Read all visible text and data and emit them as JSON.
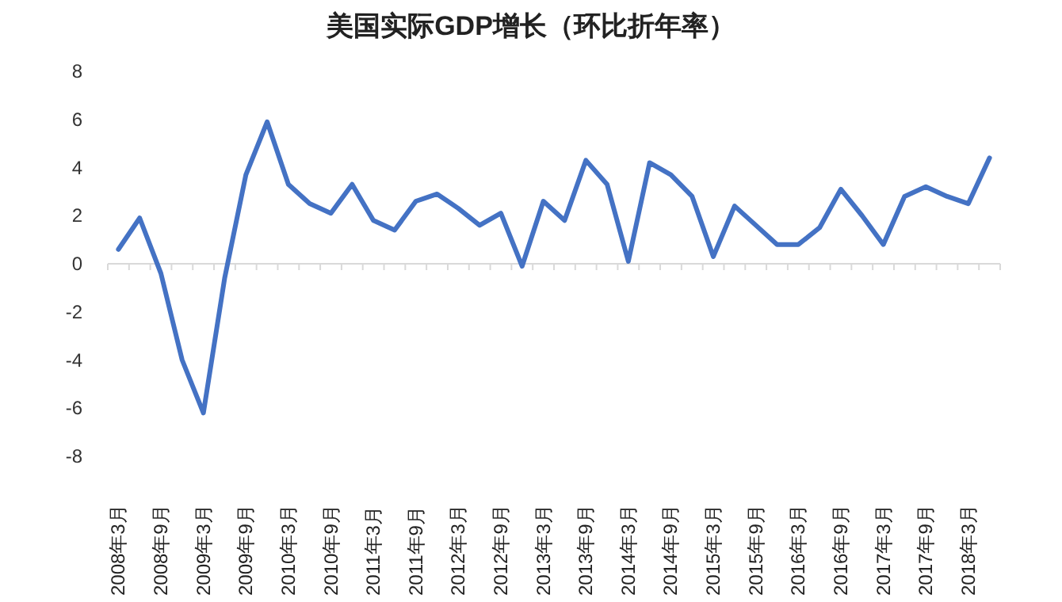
{
  "chart_data": {
    "type": "line",
    "title": "美国实际GDP增长（环比折年率）",
    "categories": [
      "2008年3月",
      null,
      "2008年9月",
      null,
      "2009年3月",
      null,
      "2009年9月",
      null,
      "2010年3月",
      null,
      "2010年9月",
      null,
      "2011年3月",
      null,
      "2011年9月",
      null,
      "2012年3月",
      null,
      "2012年9月",
      null,
      "2013年3月",
      null,
      "2013年9月",
      null,
      "2014年3月",
      null,
      "2014年9月",
      null,
      "2015年3月",
      null,
      "2015年9月",
      null,
      "2016年3月",
      null,
      "2016年9月",
      null,
      "2017年3月",
      null,
      "2017年9月",
      null,
      "2018年3月",
      null
    ],
    "series": [
      {
        "color": "#4472c4",
        "values": [
          0.6,
          1.9,
          -0.4,
          -4.0,
          -6.2,
          -0.6,
          3.7,
          5.9,
          3.3,
          2.5,
          2.1,
          3.3,
          1.8,
          1.4,
          2.6,
          2.9,
          2.3,
          1.6,
          2.1,
          -0.1,
          2.6,
          1.8,
          4.3,
          3.3,
          0.1,
          4.2,
          3.7,
          2.8,
          0.3,
          2.4,
          1.6,
          0.8,
          0.8,
          1.5,
          3.1,
          2.0,
          0.8,
          2.8,
          3.2,
          2.8,
          2.5,
          4.4
        ]
      }
    ],
    "ylim": [
      -8,
      8
    ],
    "yticks": [
      -8,
      -6,
      -4,
      -2,
      0,
      2,
      4,
      6,
      8
    ],
    "marker": "none",
    "line_style": "solid"
  }
}
